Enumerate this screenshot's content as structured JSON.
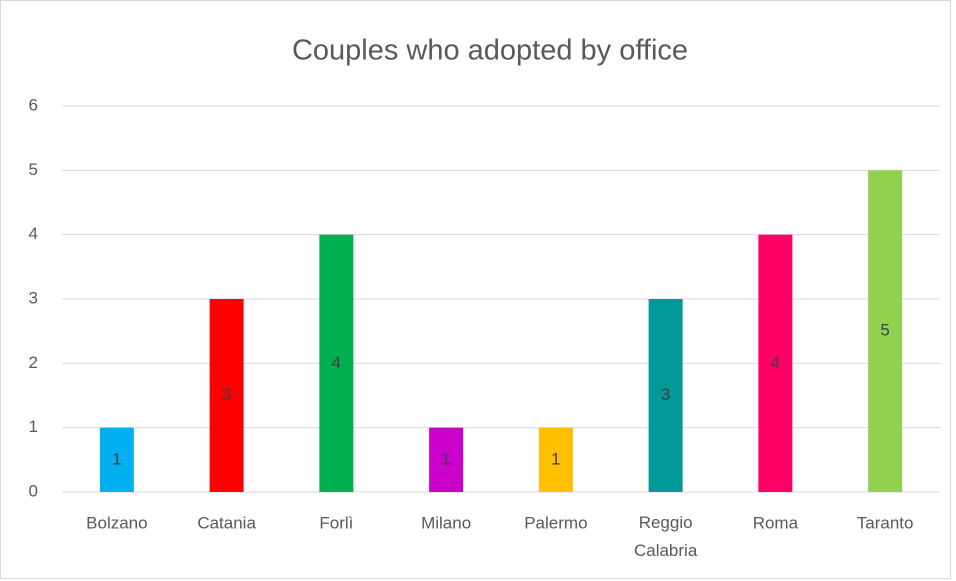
{
  "chart_data": {
    "type": "bar",
    "title": "Couples who adopted by office",
    "categories": [
      "Bolzano",
      "Catania",
      "Forlì",
      "Milano",
      "Palermo",
      "Reggio Calabria",
      "Roma",
      "Taranto"
    ],
    "values": [
      1,
      3,
      4,
      1,
      1,
      3,
      4,
      5
    ],
    "colors": [
      "#00b0f0",
      "#ff0000",
      "#00b050",
      "#cc00cc",
      "#ffc000",
      "#009999",
      "#ff0066",
      "#92d050"
    ],
    "ylim": [
      0,
      6
    ],
    "yticks": [
      0,
      1,
      2,
      3,
      4,
      5,
      6
    ],
    "grid": true,
    "data_labels": true
  }
}
